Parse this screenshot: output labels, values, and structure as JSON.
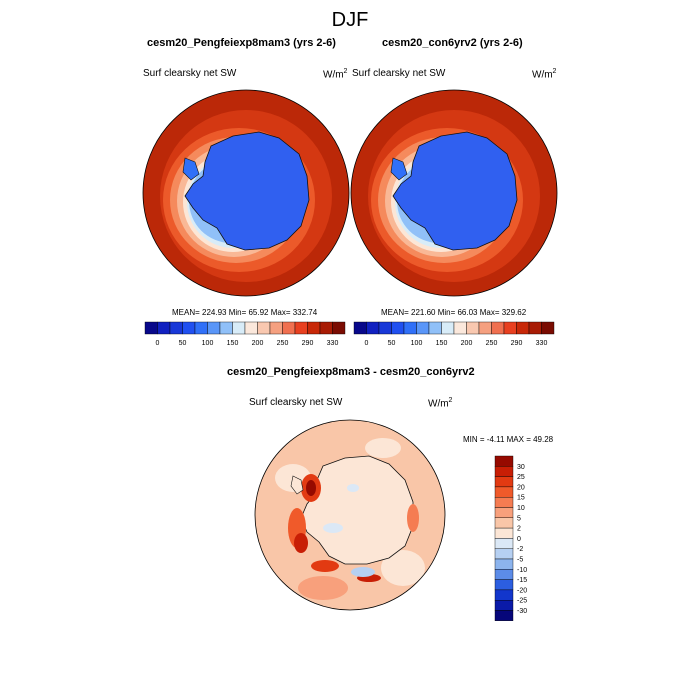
{
  "figure": {
    "title": "DJF"
  },
  "top_left": {
    "title": "cesm20_Pengfeiexp8mam3 (yrs 2-6)",
    "variable": "Surf clearsky net SW",
    "units": "W/m",
    "units_exp": "2",
    "stats": "MEAN= 224.93  Min=  65.92  Max= 332.74"
  },
  "top_right": {
    "title": "cesm20_con6yrv2 (yrs 2-6)",
    "variable": "Surf clearsky net SW",
    "units": "W/m",
    "units_exp": "2",
    "stats": "MEAN= 221.60  Min=  66.03  Max= 329.62"
  },
  "bottom": {
    "title": "cesm20_Pengfeiexp8mam3 - cesm20_con6yrv2",
    "variable": "Surf clearsky net SW",
    "units": "W/m",
    "units_exp": "2",
    "stats": "MIN =  -4.11 MAX =  49.28"
  },
  "abs_colorbar": {
    "labels": [
      "0",
      "50",
      "100",
      "150",
      "200",
      "250",
      "290",
      "330"
    ],
    "colors": [
      "#08088a",
      "#1020c0",
      "#1838d8",
      "#2050f0",
      "#3070f8",
      "#5a96f8",
      "#90c0f8",
      "#d8ecf8",
      "#fbe8dc",
      "#f9c8b0",
      "#f5a080",
      "#f07050",
      "#e84020",
      "#c82808",
      "#a81c05",
      "#7a0c02"
    ]
  },
  "diff_colorbar": {
    "labels": [
      "30",
      "25",
      "20",
      "15",
      "10",
      "5",
      "2",
      "0",
      "-2",
      "-5",
      "-10",
      "-15",
      "-20",
      "-25",
      "-30"
    ],
    "colors": [
      "#960a00",
      "#c81e05",
      "#e23a12",
      "#f05a2a",
      "#f57c52",
      "#f8a07c",
      "#f9c6a8",
      "#fce6d6",
      "#dbe8f6",
      "#b6d0f2",
      "#8cb4ee",
      "#5c8ce8",
      "#2c5ee0",
      "#1236cc",
      "#0a1aa8",
      "#06067a"
    ]
  }
}
